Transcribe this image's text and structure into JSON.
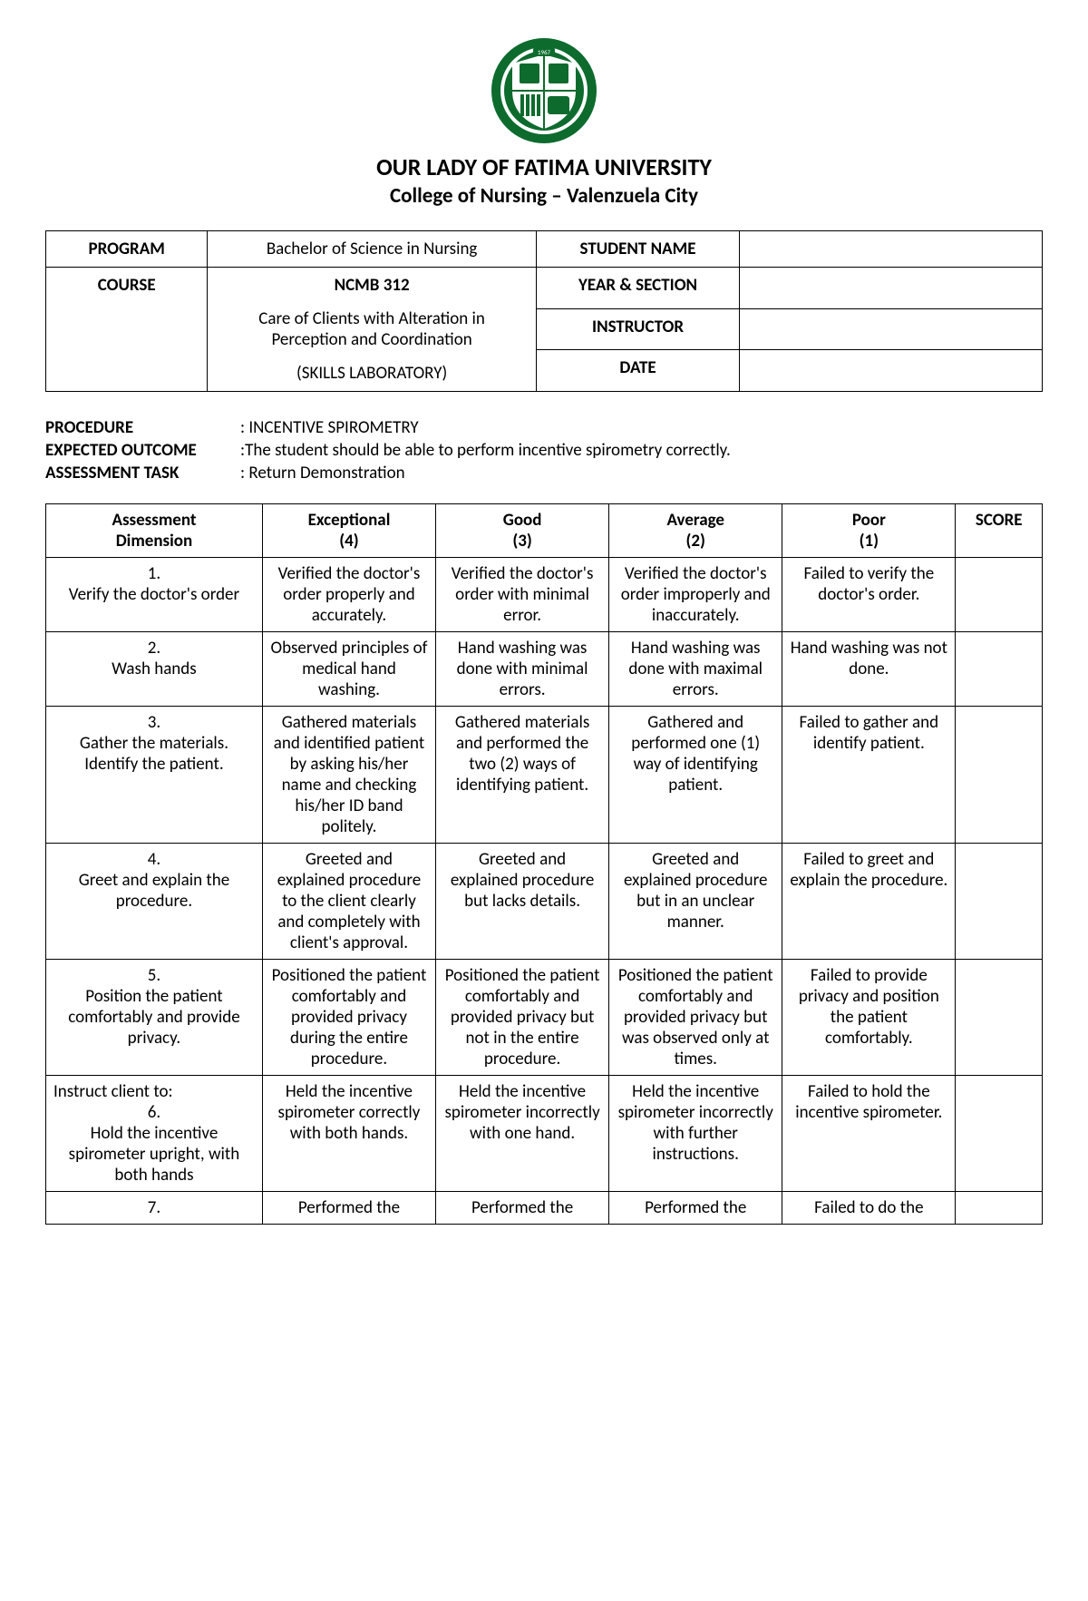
{
  "header": {
    "university": "OUR LADY OF FATIMA UNIVERSITY",
    "college": "College of Nursing – Valenzuela City",
    "logo_colors": {
      "ring": "#0d6b2e",
      "inner": "#ffffff",
      "shield": "#0d6b2e"
    }
  },
  "info": {
    "program_label": "PROGRAM",
    "program_value": "Bachelor of Science in Nursing",
    "course_label": "COURSE",
    "course_code": "NCMB 312",
    "course_desc1": "Care of  Clients with Alteration in",
    "course_desc2": "Perception and Coordination",
    "course_desc3": "(SKILLS LABORATORY)",
    "student_name_label": "STUDENT NAME",
    "student_name_value": "",
    "year_section_label": "YEAR & SECTION",
    "year_section_value": "",
    "instructor_label": "INSTRUCTOR",
    "instructor_value": "",
    "date_label": "DATE",
    "date_value": ""
  },
  "meta": {
    "procedure_label": "PROCEDURE",
    "procedure_value": ": INCENTIVE SPIROMETRY",
    "expected_label": "EXPECTED OUTCOME",
    "expected_value": ":The student should be able to perform incentive spirometry correctly.",
    "task_label": "ASSESSMENT TASK",
    "task_value": ": Return Demonstration"
  },
  "rubric": {
    "headers": {
      "dimension_line1": "Assessment",
      "dimension_line2": "Dimension",
      "c4_line1": "Exceptional",
      "c4_line2": "(4)",
      "c3_line1": "Good",
      "c3_line2": "(3)",
      "c2_line1": "Average",
      "c2_line2": "(2)",
      "c1_line1": "Poor",
      "c1_line2": "(1)",
      "score": "SCORE"
    },
    "rows": [
      {
        "num": "1.",
        "dim": "Verify the doctor's order",
        "c4": "Verified the doctor's order properly and accurately.",
        "c3": "Verified the doctor's order with minimal error.",
        "c2": "Verified the doctor's order improperly and inaccurately.",
        "c1": "Failed to verify the doctor's order.",
        "score": ""
      },
      {
        "num": "2.",
        "dim": "Wash hands",
        "c4": "Observed principles of medical hand washing.",
        "c3": "Hand washing was done with minimal errors.",
        "c2": "Hand washing was done with maximal errors.",
        "c1": "Hand washing was not done.",
        "score": ""
      },
      {
        "num": "3.",
        "dim": "Gather the materials. Identify the patient.",
        "c4": "Gathered materials and identified patient by asking his/her name and checking his/her ID band politely.",
        "c3": "Gathered materials and performed the two (2) ways of identifying patient.",
        "c2": "Gathered and performed one (1) way of identifying patient.",
        "c1": "Failed to gather and identify patient.",
        "score": ""
      },
      {
        "num": "4.",
        "dim": "Greet and explain the procedure.",
        "c4": "Greeted and explained procedure to the client clearly and completely with client's approval.",
        "c3": "Greeted and explained procedure but lacks details.",
        "c2": "Greeted and explained procedure but in an unclear manner.",
        "c1": "Failed to greet and explain the procedure.",
        "score": ""
      },
      {
        "num": "5.",
        "dim": "Position the patient comfortably and provide privacy.",
        "c4": "Positioned the patient comfortably and provided privacy during the entire procedure.",
        "c3": "Positioned the patient comfortably and provided privacy but not in the entire procedure.",
        "c2": "Positioned the patient comfortably and provided privacy but was observed only at times.",
        "c1": "Failed to provide privacy and position the patient comfortably.",
        "score": ""
      },
      {
        "pre": "Instruct client to:",
        "num": "6.",
        "dim": "Hold the incentive spirometer upright, with both hands",
        "c4": "Held the incentive spirometer correctly with both hands.",
        "c3": "Held the incentive spirometer incorrectly with one hand.",
        "c2": "Held the incentive spirometer incorrectly with further instructions.",
        "c1": "Failed to hold the incentive spirometer.",
        "score": ""
      },
      {
        "num": "7.",
        "dim": "",
        "c4": "Performed the",
        "c3": "Performed the",
        "c2": "Performed the",
        "c1": "Failed to do the",
        "score": ""
      }
    ]
  }
}
